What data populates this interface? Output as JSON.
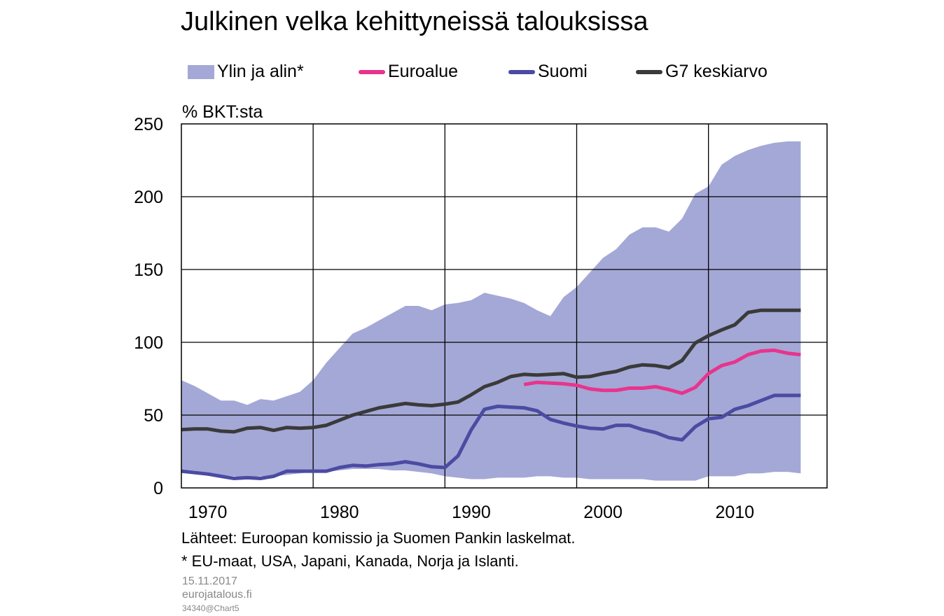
{
  "chart_data": {
    "type": "line",
    "title": "Julkinen velka kehittyneissä talouksissa",
    "ylabel": "% BKT:sta",
    "xlabel": "",
    "ylim": [
      0,
      250
    ],
    "xlim": [
      1968,
      2017
    ],
    "yticks": [
      0,
      50,
      100,
      150,
      200,
      250
    ],
    "xtick_labels": [
      "1970",
      "1980",
      "1990",
      "2000",
      "2010"
    ],
    "xtick_positions": [
      1970,
      1980,
      1990,
      2000,
      2010
    ],
    "gridlines_x": [
      1978,
      1988,
      1998,
      2008
    ],
    "legend": [
      {
        "name": "Ylin ja alin*",
        "kind": "area",
        "color": "#a4a8d6"
      },
      {
        "name": "Euroalue",
        "kind": "line",
        "color": "#e8348d"
      },
      {
        "name": "Suomi",
        "kind": "line",
        "color": "#4b4ba3"
      },
      {
        "name": "G7 keskiarvo",
        "kind": "line",
        "color": "#3a3a3a"
      }
    ],
    "range_band": {
      "name": "Ylin ja alin*",
      "x": [
        1968,
        1969,
        1970,
        1971,
        1972,
        1973,
        1974,
        1975,
        1976,
        1977,
        1978,
        1979,
        1980,
        1981,
        1982,
        1983,
        1984,
        1985,
        1986,
        1987,
        1988,
        1989,
        1990,
        1991,
        1992,
        1993,
        1994,
        1995,
        1996,
        1997,
        1998,
        1999,
        2000,
        2001,
        2002,
        2003,
        2004,
        2005,
        2006,
        2007,
        2008,
        2009,
        2010,
        2011,
        2012,
        2013,
        2014,
        2015
      ],
      "upper": [
        74,
        70,
        65,
        60,
        60,
        57,
        61,
        60,
        63,
        66,
        74,
        86,
        96,
        106,
        110,
        115,
        120,
        125,
        125,
        122,
        126,
        127,
        129,
        134,
        132,
        130,
        127,
        122,
        118,
        131,
        138,
        148,
        158,
        164,
        174,
        179,
        179,
        176,
        185,
        202,
        207,
        222,
        228,
        232,
        235,
        237,
        238,
        238
      ],
      "lower": [
        12,
        11,
        10,
        9,
        8,
        7,
        8,
        8,
        9,
        10,
        11,
        11,
        12,
        13,
        13,
        13,
        12,
        12,
        11,
        10,
        8,
        7,
        6,
        6,
        7,
        7,
        7,
        8,
        8,
        7,
        7,
        6,
        6,
        6,
        6,
        6,
        5,
        5,
        5,
        5,
        8,
        8,
        8,
        10,
        10,
        11,
        11,
        10
      ]
    },
    "series": [
      {
        "name": "Euroalue",
        "x": [
          1994,
          1995,
          1996,
          1997,
          1998,
          1999,
          2000,
          2001,
          2002,
          2003,
          2004,
          2005,
          2006,
          2007,
          2008,
          2009,
          2010,
          2011,
          2012,
          2013,
          2014,
          2015
        ],
        "values": [
          71,
          72.5,
          72,
          71.5,
          70.5,
          68,
          67,
          67,
          68.5,
          68.5,
          69.5,
          67.5,
          65,
          69,
          78.5,
          84,
          86.5,
          91.5,
          94,
          94.5,
          92.5,
          91.5
        ]
      },
      {
        "name": "Suomi",
        "x": [
          1968,
          1969,
          1970,
          1971,
          1972,
          1973,
          1974,
          1975,
          1976,
          1977,
          1978,
          1979,
          1980,
          1981,
          1982,
          1983,
          1984,
          1985,
          1986,
          1987,
          1988,
          1989,
          1990,
          1991,
          1992,
          1993,
          1994,
          1995,
          1996,
          1997,
          1998,
          1999,
          2000,
          2001,
          2002,
          2003,
          2004,
          2005,
          2006,
          2007,
          2008,
          2009,
          2010,
          2011,
          2012,
          2013,
          2014,
          2015
        ],
        "values": [
          11.5,
          10.5,
          9.5,
          8,
          6.5,
          7,
          6.5,
          8,
          11.5,
          11.5,
          11.5,
          11.5,
          14,
          15.5,
          15,
          16,
          16.5,
          18,
          16.5,
          14.5,
          14,
          22,
          40,
          54,
          56,
          55.5,
          55,
          53,
          47,
          44.5,
          42.5,
          41,
          40.5,
          43,
          43,
          40,
          38,
          34.5,
          33,
          42,
          47.5,
          48.5,
          54,
          56.5,
          60,
          63.5,
          63.5,
          63.5
        ]
      },
      {
        "name": "G7 keskiarvo",
        "x": [
          1968,
          1969,
          1970,
          1971,
          1972,
          1973,
          1974,
          1975,
          1976,
          1977,
          1978,
          1979,
          1980,
          1981,
          1982,
          1983,
          1984,
          1985,
          1986,
          1987,
          1988,
          1989,
          1990,
          1991,
          1992,
          1993,
          1994,
          1995,
          1996,
          1997,
          1998,
          1999,
          2000,
          2001,
          2002,
          2003,
          2004,
          2005,
          2006,
          2007,
          2008,
          2009,
          2010,
          2011,
          2012,
          2013,
          2014,
          2015
        ],
        "values": [
          40,
          40.5,
          40.5,
          39,
          38.5,
          41,
          41.5,
          39.5,
          41.5,
          41,
          41.5,
          43,
          46.5,
          50,
          52.5,
          55,
          56.5,
          58,
          57,
          56.5,
          57.5,
          59,
          64,
          69.5,
          72.5,
          76.5,
          78,
          77.5,
          78,
          78.5,
          76,
          76.5,
          78.5,
          80,
          83,
          84.5,
          84,
          82.5,
          87.5,
          99.5,
          104.5,
          108.5,
          112,
          120.5,
          122,
          122,
          122,
          122
        ]
      }
    ]
  },
  "source_note": "Lähteet: Euroopan komissio ja Suomen Pankin laskelmat.",
  "footnote": "* EU-maat, USA, Japani, Kanada, Norja ja Islanti.",
  "meta": {
    "date": "15.11.2017",
    "site": "eurojatalous.fi",
    "code": "34340@Chart5"
  }
}
